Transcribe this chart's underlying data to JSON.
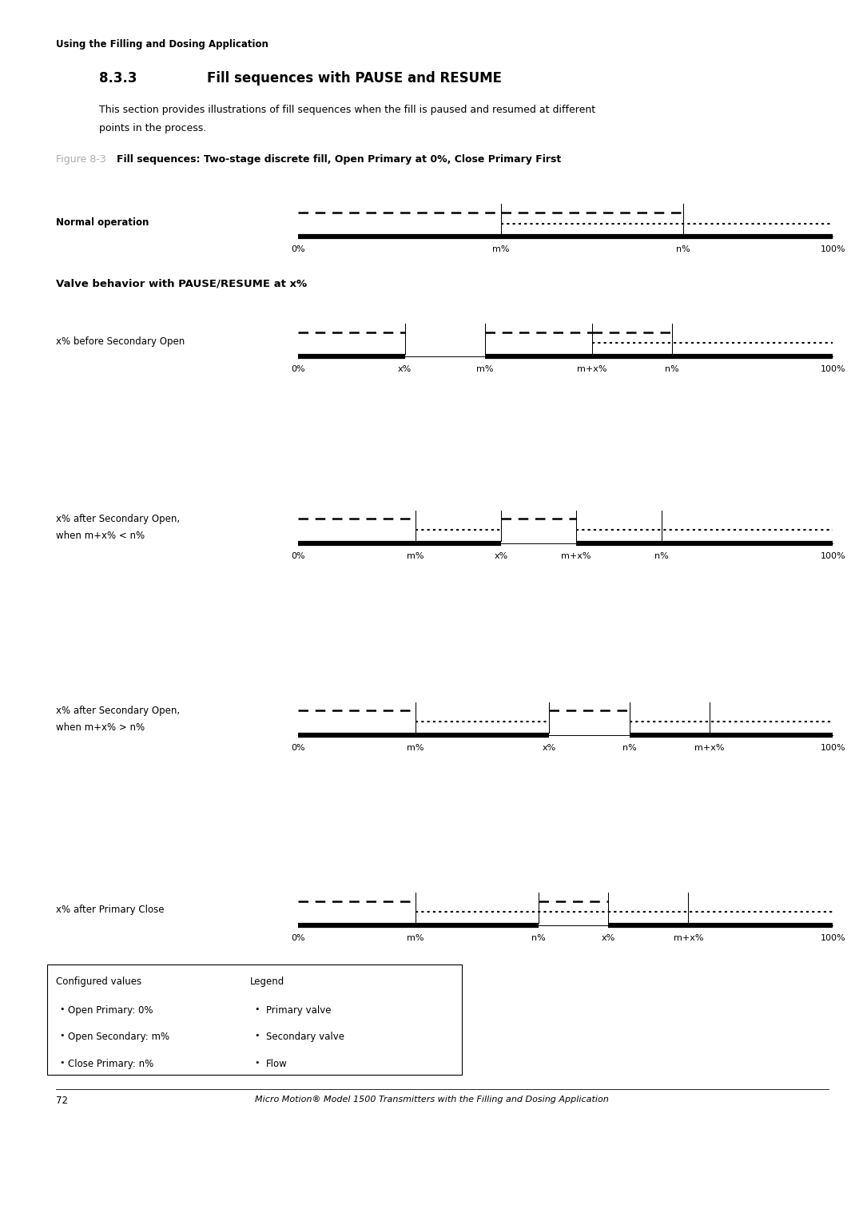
{
  "page_header": "Using the Filling and Dosing Application",
  "section_num": "8.3.3",
  "section_title": "Fill sequences with PAUSE and RESUME",
  "section_body_1": "This section provides illustrations of fill sequences when the fill is paused and resumed at different",
  "section_body_2": "points in the process.",
  "figure_label": "Figure 8-3",
  "figure_title": "Fill sequences: Two-stage discrete fill, Open Primary at 0%, Close Primary First",
  "subsection_title": "Valve behavior with PAUSE/RESUME at x%",
  "diagrams": [
    {
      "label": "Normal operation",
      "label2": "",
      "bold_label": true,
      "x_ticks": [
        "0%",
        "m%",
        "n%",
        "100%"
      ],
      "x_positions": [
        0.0,
        0.38,
        0.72,
        1.0
      ],
      "vlines": [
        0.38,
        0.72
      ],
      "primary_segments": [
        {
          "x": [
            0.0,
            0.38
          ],
          "style": "dashed"
        },
        {
          "x": [
            0.38,
            0.72
          ],
          "style": "dashed"
        }
      ],
      "secondary_segments": [
        {
          "x": [
            0.38,
            1.0
          ],
          "style": "dotted"
        }
      ],
      "flow_segments": [
        {
          "x": [
            0.0,
            1.0
          ]
        }
      ]
    },
    {
      "label": "x% before Secondary Open",
      "label2": "",
      "bold_label": false,
      "x_ticks": [
        "0%",
        "x%",
        "m%",
        "m+x%",
        "n%",
        "100%"
      ],
      "x_positions": [
        0.0,
        0.2,
        0.35,
        0.55,
        0.7,
        1.0
      ],
      "vlines": [
        0.2,
        0.35,
        0.55,
        0.7
      ],
      "primary_segments": [
        {
          "x": [
            0.0,
            0.2
          ],
          "style": "dashed"
        },
        {
          "x": [
            0.35,
            0.55
          ],
          "style": "dashed"
        },
        {
          "x": [
            0.55,
            0.7
          ],
          "style": "dashed"
        }
      ],
      "secondary_segments": [
        {
          "x": [
            0.55,
            1.0
          ],
          "style": "dotted"
        }
      ],
      "flow_segments": [
        {
          "x": [
            0.0,
            0.2
          ]
        },
        {
          "x": [
            0.35,
            1.0
          ]
        }
      ]
    },
    {
      "label": "x% after Secondary Open,",
      "label2": "when m+x% < n%",
      "bold_label": false,
      "x_ticks": [
        "0%",
        "m%",
        "x%",
        "m+x%",
        "n%",
        "100%"
      ],
      "x_positions": [
        0.0,
        0.22,
        0.38,
        0.52,
        0.68,
        1.0
      ],
      "vlines": [
        0.22,
        0.38,
        0.52,
        0.68
      ],
      "primary_segments": [
        {
          "x": [
            0.0,
            0.22
          ],
          "style": "dashed"
        },
        {
          "x": [
            0.38,
            0.52
          ],
          "style": "dashed"
        }
      ],
      "secondary_segments": [
        {
          "x": [
            0.22,
            0.38
          ],
          "style": "dotted"
        },
        {
          "x": [
            0.52,
            1.0
          ],
          "style": "dotted"
        }
      ],
      "flow_segments": [
        {
          "x": [
            0.0,
            0.38
          ]
        },
        {
          "x": [
            0.52,
            1.0
          ]
        }
      ]
    },
    {
      "label": "x% after Secondary Open,",
      "label2": "when m+x% > n%",
      "bold_label": false,
      "x_ticks": [
        "0%",
        "m%",
        "x%",
        "n%",
        "m+x%",
        "100%"
      ],
      "x_positions": [
        0.0,
        0.22,
        0.47,
        0.62,
        0.77,
        1.0
      ],
      "vlines": [
        0.22,
        0.47,
        0.62,
        0.77
      ],
      "primary_segments": [
        {
          "x": [
            0.0,
            0.22
          ],
          "style": "dashed"
        },
        {
          "x": [
            0.47,
            0.62
          ],
          "style": "dashed"
        }
      ],
      "secondary_segments": [
        {
          "x": [
            0.22,
            0.47
          ],
          "style": "dotted"
        },
        {
          "x": [
            0.62,
            1.0
          ],
          "style": "dotted"
        }
      ],
      "flow_segments": [
        {
          "x": [
            0.0,
            0.47
          ]
        },
        {
          "x": [
            0.62,
            1.0
          ]
        }
      ]
    },
    {
      "label": "x% after Primary Close",
      "label2": "",
      "bold_label": false,
      "x_ticks": [
        "0%",
        "m%",
        "n%",
        "x%",
        "m+x%",
        "100%"
      ],
      "x_positions": [
        0.0,
        0.22,
        0.45,
        0.58,
        0.73,
        1.0
      ],
      "vlines": [
        0.22,
        0.45,
        0.58,
        0.73
      ],
      "primary_segments": [
        {
          "x": [
            0.0,
            0.22
          ],
          "style": "dashed"
        },
        {
          "x": [
            0.45,
            0.58
          ],
          "style": "dashed"
        }
      ],
      "secondary_segments": [
        {
          "x": [
            0.22,
            0.58
          ],
          "style": "dotted"
        },
        {
          "x": [
            0.58,
            1.0
          ],
          "style": "dotted"
        }
      ],
      "flow_segments": [
        {
          "x": [
            0.0,
            0.45
          ]
        },
        {
          "x": [
            0.58,
            1.0
          ]
        }
      ]
    }
  ],
  "legend_configured_title": "Configured values",
  "legend_configured": [
    "Open Primary: 0%",
    "Open Secondary: m%",
    "Close Primary: n%"
  ],
  "legend_title": "Legend",
  "legend_items": [
    {
      "label": "Primary valve",
      "style": "dashed"
    },
    {
      "label": "Secondary valve",
      "style": "dotted"
    },
    {
      "label": "Flow",
      "style": "solid"
    }
  ],
  "page_num": "72",
  "page_footer": "Micro Motion® Model 1500 Transmitters with the Filling and Dosing Application",
  "bg_color": "#ffffff"
}
